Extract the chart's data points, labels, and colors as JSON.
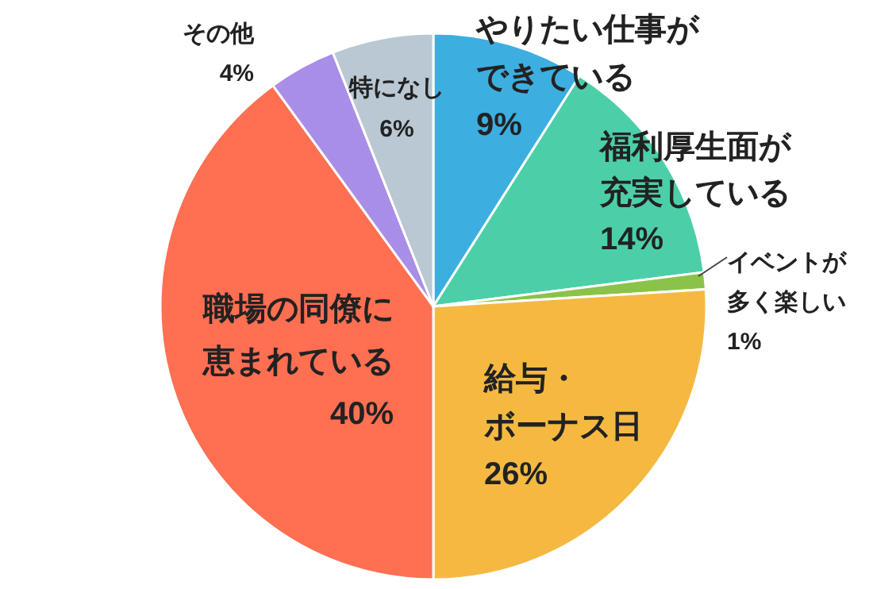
{
  "chart_data": {
    "type": "pie",
    "categories": [
      "やりたい仕事ができている",
      "福利厚生面が充実している",
      "イベントが多く楽しい",
      "給与・ボーナス日",
      "職場の同僚に恵まれている",
      "その他",
      "特になし"
    ],
    "values": [
      9,
      14,
      1,
      26,
      40,
      4,
      6
    ],
    "colors": [
      "#3daee0",
      "#4ccfa8",
      "#8bc34a",
      "#f5b942",
      "#ff6f52",
      "#a98ee8",
      "#b9c8d2"
    ],
    "value_labels": [
      "9%",
      "14%",
      "1%",
      "26%",
      "40%",
      "4%",
      "6%"
    ]
  }
}
